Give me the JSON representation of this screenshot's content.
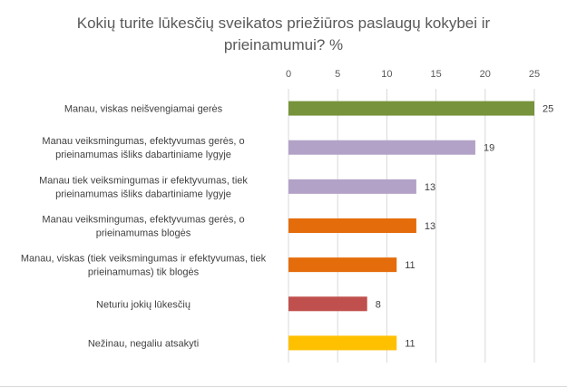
{
  "title_lines": [
    "Kokių turite lūkesčių sveikatos priežiūros paslaugų kokybei ir",
    "prieinamumui? %"
  ],
  "chart_data": {
    "type": "bar",
    "orientation": "horizontal",
    "title": "Kokių turite lūkesčių sveikatos priežiūros paslaugų kokybei ir prieinamumui? %",
    "xlim": [
      0,
      25
    ],
    "xticks": [
      0,
      5,
      10,
      15,
      20,
      25
    ],
    "x_axis_position": "top",
    "grid": "vertical",
    "legend": "none",
    "categories": [
      "Manau, viskas neišvengiamai gerės",
      "Manau veiksmingumas, efektyvumas gerės, o prieinamumas išliks dabartiniame lygyje",
      "Manau tiek veiksmingumas ir efektyvumas, tiek prieinamumas išliks dabartiniame lygyje",
      "Manau veiksmingumas, efektyvumas gerės, o prieinamumas blogės",
      "Manau, viskas (tiek veiksmingumas ir efektyvumas, tiek prieinamumas) tik blogės",
      "Neturiu jokių lūkesčių",
      "Nežinau, negaliu atsakyti"
    ],
    "category_lines": [
      [
        "Manau, viskas neišvengiamai gerės"
      ],
      [
        "Manau veiksmingumas, efektyvumas gerės, o",
        "prieinamumas išliks dabartiniame lygyje"
      ],
      [
        "Manau tiek veiksmingumas ir efektyvumas, tiek",
        "prieinamumas išliks dabartiniame lygyje"
      ],
      [
        "Manau veiksmingumas, efektyvumas gerės, o",
        "prieinamumas blogės"
      ],
      [
        "Manau, viskas (tiek veiksmingumas ir efektyvumas, tiek",
        "prieinamumas) tik blogės"
      ],
      [
        "Neturiu jokių lūkesčių"
      ],
      [
        "Nežinau, negaliu atsakyti"
      ]
    ],
    "values": [
      25,
      19,
      13,
      13,
      11,
      8,
      11
    ],
    "colors": [
      "#77933c",
      "#b3a2c7",
      "#b3a2c7",
      "#e46c0a",
      "#e46c0a",
      "#c0504d",
      "#ffc000"
    ]
  }
}
